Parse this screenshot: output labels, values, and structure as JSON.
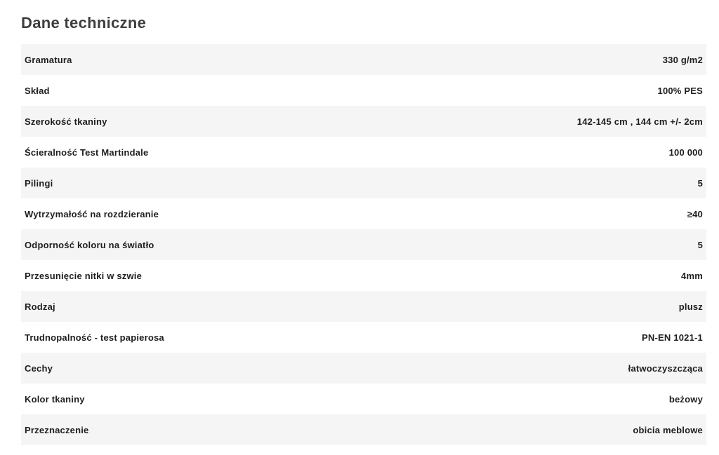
{
  "section": {
    "title": "Dane techniczne"
  },
  "colors": {
    "stripe": "#f5f5f5",
    "row_text": "#1e1e1e",
    "title_text": "#3e3e3e"
  },
  "table": {
    "rows": [
      {
        "label": "Gramatura",
        "value": "330 g/m2"
      },
      {
        "label": "Skład",
        "value": "100% PES"
      },
      {
        "label": "Szerokość tkaniny",
        "value": "142-145 cm , 144 cm +/- 2cm"
      },
      {
        "label": "Ścieralność Test Martindale",
        "value": "100 000"
      },
      {
        "label": "Pilingi",
        "value": "5"
      },
      {
        "label": "Wytrzymałość na rozdzieranie",
        "value": "≥40"
      },
      {
        "label": "Odporność koloru na światło",
        "value": "5"
      },
      {
        "label": "Przesunięcie nitki w szwie",
        "value": "4mm"
      },
      {
        "label": "Rodzaj",
        "value": "plusz"
      },
      {
        "label": "Trudnopalność - test papierosa",
        "value": "PN-EN 1021-1"
      },
      {
        "label": "Cechy",
        "value": "łatwoczyszcząca"
      },
      {
        "label": "Kolor tkaniny",
        "value": "beżowy"
      },
      {
        "label": "Przeznaczenie",
        "value": "obicia meblowe"
      }
    ]
  }
}
